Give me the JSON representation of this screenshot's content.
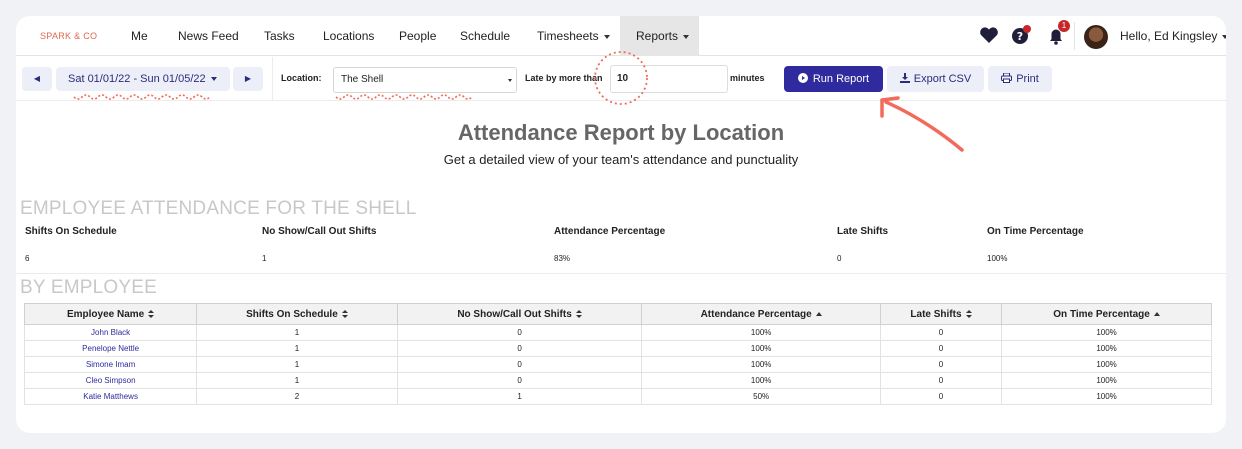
{
  "brand": "SPARK & CO",
  "nav": {
    "items": [
      "Me",
      "News Feed",
      "Tasks",
      "Locations",
      "People",
      "Schedule",
      "Timesheets"
    ],
    "active": "Reports",
    "notification_count": "1",
    "greeting": "Hello, Ed Kingsley"
  },
  "toolbar": {
    "prev_icon": "◀",
    "next_icon": "▶",
    "date_range": "Sat 01/01/22 - Sun 01/05/22",
    "location_label": "Location:",
    "location_value": "The Shell",
    "late_label": "Late by more than",
    "late_value": "10",
    "minutes_label": "minutes",
    "run_report": "Run Report",
    "export_csv": "Export CSV",
    "print": "Print"
  },
  "report": {
    "title": "Attendance Report by Location",
    "subtitle": "Get a detailed view of your team's attendance and punctuality"
  },
  "summary": {
    "section_title": "EMPLOYEE ATTENDANCE FOR THE SHELL",
    "headers": [
      "Shifts On Schedule",
      "No Show/Call Out Shifts",
      "Attendance Percentage",
      "Late Shifts",
      "On Time Percentage"
    ],
    "values": [
      "6",
      "1",
      "83%",
      "0",
      "100%"
    ]
  },
  "by_employee": {
    "section_title": "BY EMPLOYEE",
    "columns": [
      "Employee Name",
      "Shifts On Schedule",
      "No Show/Call Out Shifts",
      "Attendance Percentage",
      "Late Shifts",
      "On Time Percentage"
    ],
    "rows": [
      [
        "John Black",
        "1",
        "0",
        "100%",
        "0",
        "100%"
      ],
      [
        "Penelope Nettle",
        "1",
        "0",
        "100%",
        "0",
        "100%"
      ],
      [
        "Simone Imam",
        "1",
        "0",
        "100%",
        "0",
        "100%"
      ],
      [
        "Cleo Simpson",
        "1",
        "0",
        "100%",
        "0",
        "100%"
      ],
      [
        "Katie Matthews",
        "2",
        "1",
        "50%",
        "0",
        "100%"
      ]
    ]
  },
  "colors": {
    "accent": "#2f2a9e",
    "annotation": "#f26a5a",
    "brand": "#e0684a"
  }
}
